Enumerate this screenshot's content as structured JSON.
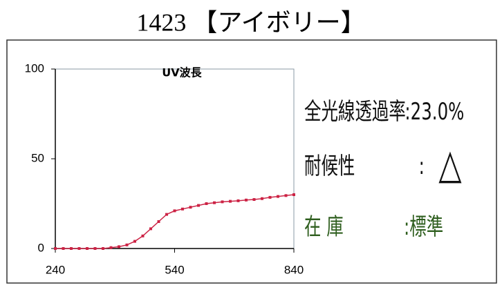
{
  "header": {
    "title": "1423 【アイボリー】"
  },
  "chart_data": {
    "type": "line",
    "title": "UV波長",
    "x": [
      240,
      260,
      280,
      300,
      320,
      340,
      360,
      380,
      400,
      420,
      440,
      460,
      480,
      500,
      520,
      540,
      560,
      580,
      600,
      620,
      640,
      660,
      680,
      700,
      720,
      740,
      760,
      780,
      800,
      820,
      840
    ],
    "series": [
      {
        "color": "#cc2244",
        "values": [
          0,
          0,
          0,
          0,
          0,
          0,
          0,
          0.5,
          1,
          2,
          4,
          7,
          11,
          15,
          19,
          21,
          22,
          23,
          24,
          25,
          25.5,
          26,
          26.3,
          26.6,
          27,
          27.3,
          27.8,
          28.5,
          29,
          29.5,
          30
        ]
      }
    ],
    "xlim": [
      240,
      840
    ],
    "xticks": [
      240,
      540,
      840
    ],
    "ylim": [
      0,
      100
    ],
    "yticks": [
      0,
      50,
      100
    ]
  },
  "info": [
    {
      "label": "全光線透過率",
      "value": ":23.0%",
      "color": "#111111"
    },
    {
      "label": "耐候性",
      "sep": ":",
      "value": "△",
      "color": "#111111"
    },
    {
      "label": "在 庫",
      "value": ":標準",
      "color": "#2e5e1e"
    }
  ]
}
